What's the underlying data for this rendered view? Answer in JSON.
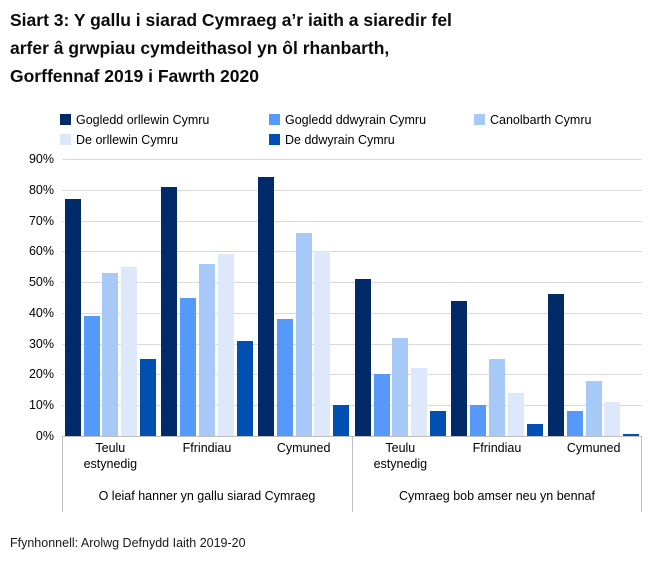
{
  "title": {
    "line1": "Siart 3: Y gallu i siarad Cymraeg a’r iaith a siaredir fel",
    "line2": "arfer â grwpiau cymdeithasol yn ôl rhanbarth,",
    "line3": "Gorffennaf 2019 i Fawrth 2020"
  },
  "source": "Ffynhonnell: Arolwg Defnydd Iaith 2019-20",
  "colors": {
    "gridline": "#d9d9d9",
    "axis": "#bfbfbf",
    "text": "#000000"
  },
  "chart_data": {
    "type": "bar",
    "title": "Siart 3: Y gallu i siarad Cymraeg a’r iaith a siaredir fel arfer â grwpiau cymdeithasol yn ôl rhanbarth, Gorffennaf 2019 i Fawrth 2020",
    "ylabel": "",
    "xlabel": "",
    "ylim": [
      0,
      90
    ],
    "ytick_step": 10,
    "ytick_format": "percent",
    "grid": true,
    "legend_position": "top",
    "series": [
      {
        "name": "Gogledd orllewin Cymru",
        "color": "#002a68"
      },
      {
        "name": "Gogledd ddwyrain Cymru",
        "color": "#5599fa"
      },
      {
        "name": "Canolbarth Cymru",
        "color": "#a7c9f8"
      },
      {
        "name": "De orllewin Cymru",
        "color": "#dde9fa"
      },
      {
        "name": "De ddwyrain Cymru",
        "color": "#0050b2"
      }
    ],
    "sections": [
      {
        "label": "O leiaf hanner yn gallu siarad Cymraeg",
        "categories": [
          "Teulu estynedig",
          "Ffrindiau",
          "Cymuned"
        ],
        "values": [
          [
            77,
            39,
            53,
            55,
            25
          ],
          [
            81,
            45,
            56,
            59,
            31
          ],
          [
            84,
            38,
            66,
            60,
            10
          ]
        ]
      },
      {
        "label": "Cymraeg bob amser neu yn bennaf",
        "categories": [
          "Teulu estynedig",
          "Ffrindiau",
          "Cymuned"
        ],
        "values": [
          [
            51,
            20,
            32,
            22,
            8
          ],
          [
            44,
            10,
            25,
            14,
            4
          ],
          [
            46,
            8,
            18,
            11,
            0.5
          ]
        ]
      }
    ]
  }
}
